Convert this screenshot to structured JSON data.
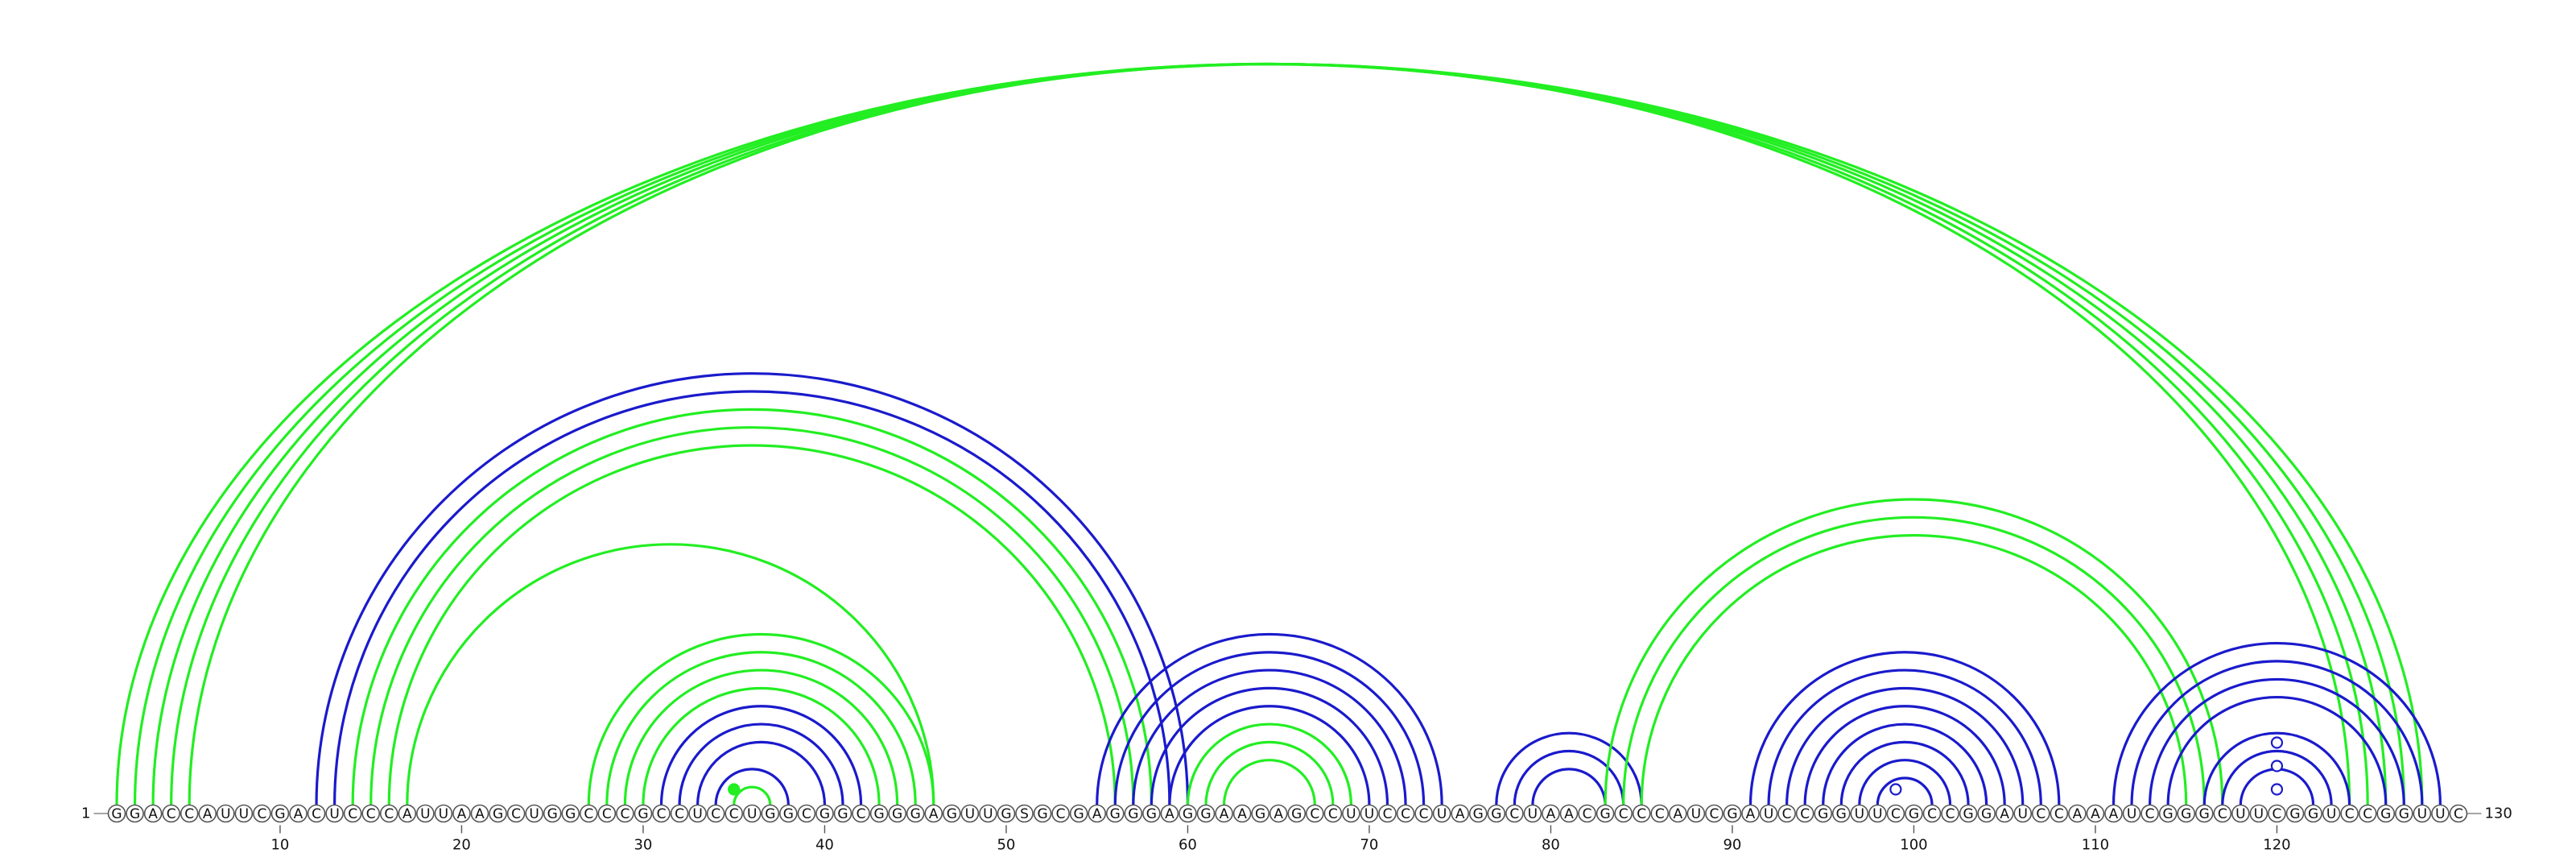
{
  "sequence": "GGACCAUUCGACUCCCAUUAAGCUGGCCCGCCUCCUGGCGGCGGGAGUUGSGCGAGGGAGGAAGAGCCUUCCCUAGGCUAACGCCCAUCGAUCCGGUUCGCCGGAUCCAAAUCGGGCUUCGGUCCGGUUC",
  "start_label": "1",
  "end_label": "130",
  "ticks": [
    "10",
    "20",
    "30",
    "40",
    "50",
    "60",
    "70",
    "80",
    "90",
    "100",
    "110",
    "120"
  ],
  "colors": {
    "green": "#22ee22",
    "blue": "#1a1acc"
  },
  "chart_data": {
    "type": "arc",
    "length": 130,
    "arcs": [
      {
        "i": 1,
        "j": 128,
        "color": "green"
      },
      {
        "i": 2,
        "j": 127,
        "color": "green"
      },
      {
        "i": 3,
        "j": 126,
        "color": "green"
      },
      {
        "i": 4,
        "j": 125,
        "color": "green"
      },
      {
        "i": 5,
        "j": 124,
        "color": "green"
      },
      {
        "i": 12,
        "j": 60,
        "color": "blue"
      },
      {
        "i": 13,
        "j": 59,
        "color": "blue"
      },
      {
        "i": 14,
        "j": 58,
        "color": "green"
      },
      {
        "i": 15,
        "j": 57,
        "color": "green"
      },
      {
        "i": 16,
        "j": 56,
        "color": "green"
      },
      {
        "i": 17,
        "j": 46,
        "color": "green"
      },
      {
        "i": 27,
        "j": 46,
        "color": "green"
      },
      {
        "i": 28,
        "j": 45,
        "color": "green"
      },
      {
        "i": 29,
        "j": 44,
        "color": "green"
      },
      {
        "i": 30,
        "j": 43,
        "color": "green"
      },
      {
        "i": 31,
        "j": 42,
        "color": "blue"
      },
      {
        "i": 32,
        "j": 41,
        "color": "blue"
      },
      {
        "i": 33,
        "j": 40,
        "color": "blue"
      },
      {
        "i": 34,
        "j": 38,
        "color": "blue"
      },
      {
        "i": 35,
        "j": 37,
        "color": "green"
      },
      {
        "i": 55,
        "j": 74,
        "color": "blue"
      },
      {
        "i": 56,
        "j": 73,
        "color": "blue"
      },
      {
        "i": 57,
        "j": 72,
        "color": "blue"
      },
      {
        "i": 58,
        "j": 71,
        "color": "blue"
      },
      {
        "i": 59,
        "j": 70,
        "color": "blue"
      },
      {
        "i": 60,
        "j": 69,
        "color": "green"
      },
      {
        "i": 61,
        "j": 68,
        "color": "green"
      },
      {
        "i": 62,
        "j": 67,
        "color": "green"
      },
      {
        "i": 77,
        "j": 85,
        "color": "blue"
      },
      {
        "i": 78,
        "j": 84,
        "color": "blue"
      },
      {
        "i": 79,
        "j": 83,
        "color": "blue"
      },
      {
        "i": 83,
        "j": 117,
        "color": "green"
      },
      {
        "i": 84,
        "j": 116,
        "color": "green"
      },
      {
        "i": 85,
        "j": 115,
        "color": "green"
      },
      {
        "i": 91,
        "j": 108,
        "color": "blue"
      },
      {
        "i": 92,
        "j": 107,
        "color": "blue"
      },
      {
        "i": 93,
        "j": 106,
        "color": "blue"
      },
      {
        "i": 94,
        "j": 105,
        "color": "blue"
      },
      {
        "i": 95,
        "j": 104,
        "color": "blue"
      },
      {
        "i": 96,
        "j": 103,
        "color": "blue"
      },
      {
        "i": 97,
        "j": 102,
        "color": "blue"
      },
      {
        "i": 98,
        "j": 101,
        "color": "blue"
      },
      {
        "i": 111,
        "j": 129,
        "color": "blue"
      },
      {
        "i": 112,
        "j": 128,
        "color": "blue"
      },
      {
        "i": 113,
        "j": 127,
        "color": "blue"
      },
      {
        "i": 114,
        "j": 126,
        "color": "blue"
      },
      {
        "i": 116,
        "j": 124,
        "color": "blue"
      },
      {
        "i": 117,
        "j": 123,
        "color": "blue"
      },
      {
        "i": 118,
        "j": 122,
        "color": "blue"
      }
    ],
    "markers": [
      {
        "pos": 35,
        "color": "green",
        "filled": true
      },
      {
        "pos": 99,
        "color": "blue",
        "filled": false
      },
      {
        "pos": 120,
        "color": "blue",
        "filled": false
      },
      {
        "pos": 120,
        "color": "blue",
        "filled": false
      },
      {
        "pos": 120,
        "color": "blue",
        "filled": false
      }
    ]
  }
}
